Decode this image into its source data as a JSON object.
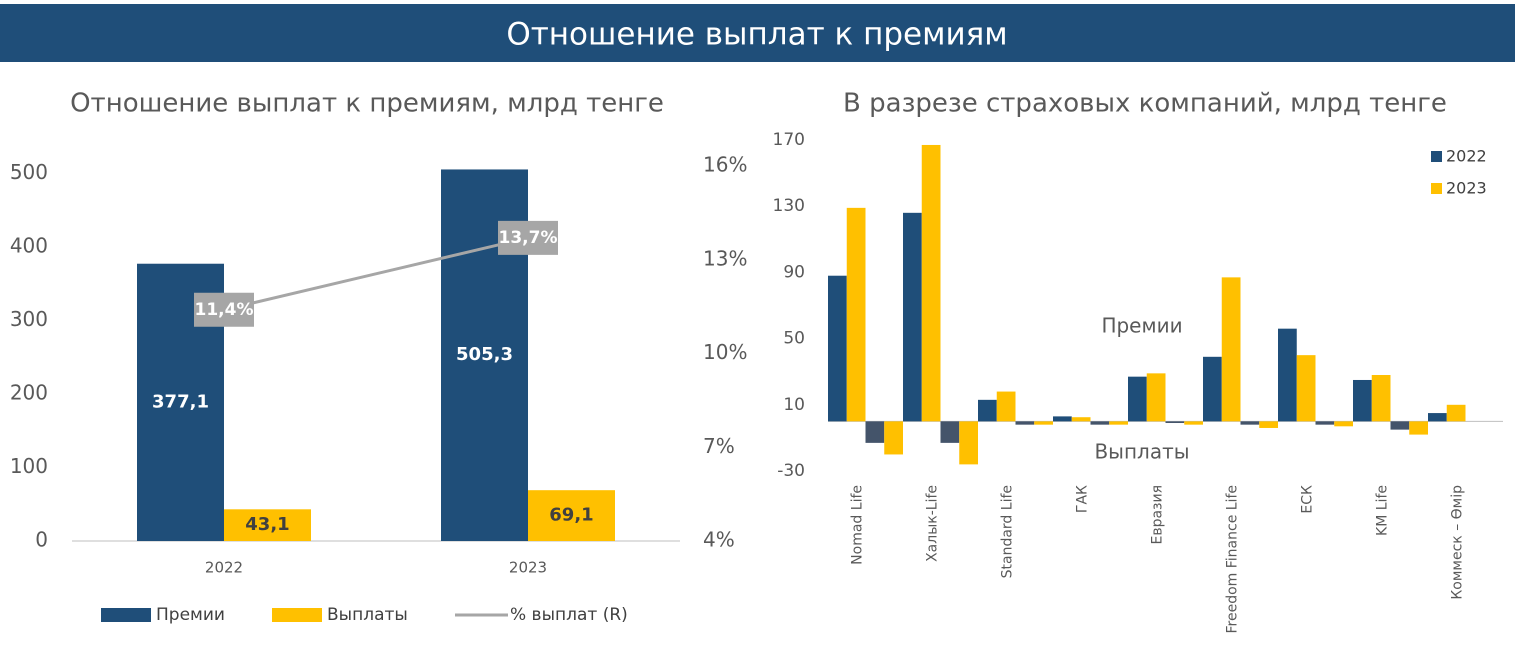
{
  "header": {
    "title": "Отношение выплат к премиям"
  },
  "chart_data": [
    {
      "type": "bar",
      "title": "Отношение выплат к премиям, млрд тенге",
      "categories": [
        "2022",
        "2023"
      ],
      "series": [
        {
          "name": "Премии",
          "color": "#1f4e79",
          "values": [
            377.1,
            505.3
          ],
          "value_labels": [
            "377,1",
            "505,3"
          ]
        },
        {
          "name": "Выплаты",
          "color": "#ffc000",
          "values": [
            43.1,
            69.1
          ],
          "value_labels": [
            "43,1",
            "69,1"
          ]
        },
        {
          "name": "%  выплат (R)",
          "type": "line",
          "axis": "y2",
          "color": "#a6a6a6",
          "values": [
            11.4,
            13.7
          ],
          "value_labels": [
            "11,4%",
            "13,7%"
          ]
        }
      ],
      "ylim": [
        0,
        510
      ],
      "yticks": [
        0,
        100,
        200,
        300,
        400,
        500
      ],
      "y2lim": [
        4,
        16
      ],
      "y2ticks": [
        {
          "value": 4,
          "label": "4%"
        },
        {
          "value": 7,
          "label": "7%"
        },
        {
          "value": 10,
          "label": "10%"
        },
        {
          "value": 13,
          "label": "13%"
        },
        {
          "value": 16,
          "label": "16%"
        }
      ],
      "grid": false,
      "legend": "bottom"
    },
    {
      "type": "bar",
      "title": "В разрезе страховых компаний, млрд тенге",
      "categories": [
        "Nomad Life",
        "Халык-Life",
        "Standard Life",
        "ГАК",
        "Евразия",
        "Freedom Finance Life",
        "ЕСК",
        "KM Life",
        "Коммеск – Өмір"
      ],
      "series": [
        {
          "name": "2022",
          "color": "#1f4e79",
          "payout_color": "#44546a",
          "values": [
            88,
            126,
            13,
            3,
            27,
            39,
            56,
            25,
            5
          ],
          "payouts": [
            -13,
            -13,
            -2,
            -2,
            -1,
            -2,
            -2,
            -5,
            0
          ]
        },
        {
          "name": "2023",
          "color": "#ffc000",
          "payout_color": "#ffc000",
          "values": [
            129,
            167,
            18,
            2.5,
            29,
            87,
            40,
            28,
            10
          ],
          "payouts": [
            -20,
            -26,
            -2,
            -2,
            -2,
            -4,
            -3,
            -8,
            0
          ]
        }
      ],
      "annotations": [
        "Премии",
        "Выплаты"
      ],
      "ylim": [
        -30,
        170
      ],
      "yticks": [
        -30,
        10,
        50,
        90,
        130,
        170
      ],
      "grid": false,
      "legend": "top-right"
    }
  ]
}
